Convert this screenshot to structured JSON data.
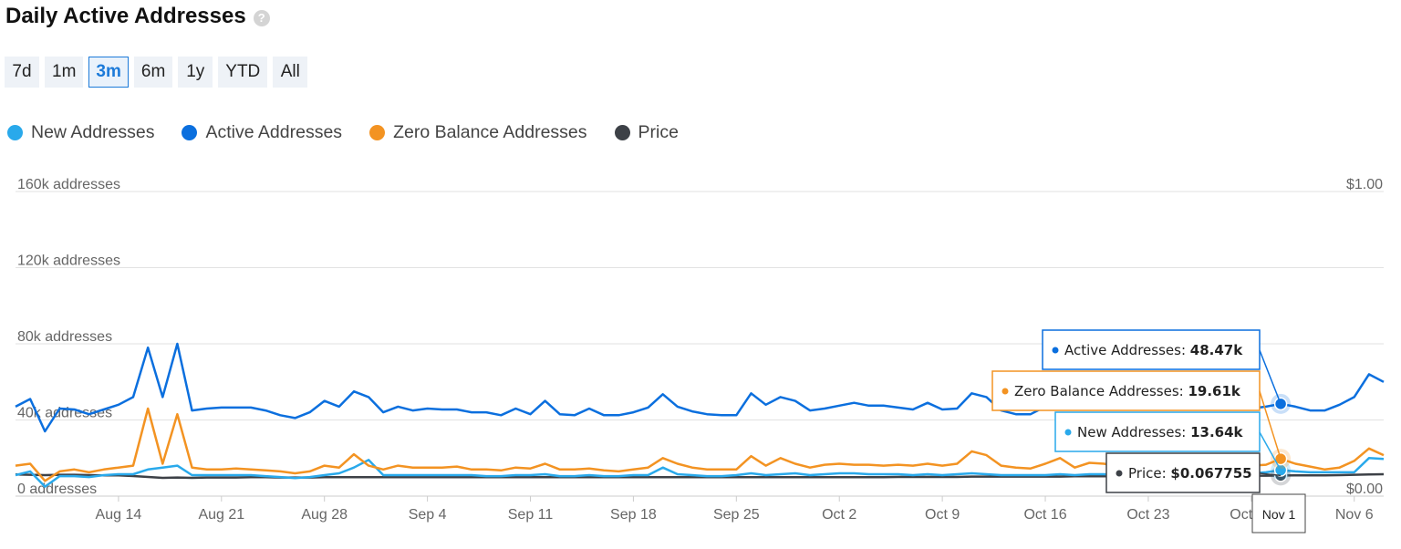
{
  "header": {
    "title": "Daily Active Addresses",
    "help_icon": "?"
  },
  "range_buttons": [
    {
      "label": "7d",
      "active": false
    },
    {
      "label": "1m",
      "active": false
    },
    {
      "label": "3m",
      "active": true
    },
    {
      "label": "6m",
      "active": false
    },
    {
      "label": "1y",
      "active": false
    },
    {
      "label": "YTD",
      "active": false
    },
    {
      "label": "All",
      "active": false
    }
  ],
  "legend": [
    {
      "label": "New Addresses",
      "color": "#29a9eb"
    },
    {
      "label": "Active Addresses",
      "color": "#0b6fde"
    },
    {
      "label": "Zero Balance Addresses",
      "color": "#f39322"
    },
    {
      "label": "Price",
      "color": "#3d4147"
    }
  ],
  "tooltip": {
    "active_label": "Active Addresses: ",
    "active_value": "48.47k",
    "zero_label": "Zero Balance Addresses: ",
    "zero_value": "19.61k",
    "new_label": "New Addresses: ",
    "new_value": "13.64k",
    "price_label": "Price: ",
    "price_value": "$0.067755",
    "date": "Nov 1"
  },
  "chart_data": {
    "type": "line",
    "title": "Daily Active Addresses",
    "left_axis": {
      "ticks": [
        "0 addresses",
        "40k addresses",
        "80k addresses",
        "120k addresses",
        "160k addresses"
      ],
      "range": [
        0,
        160000
      ]
    },
    "right_axis": {
      "ticks": [
        "$0.00",
        "$1.00"
      ],
      "range": [
        0,
        1
      ]
    },
    "x_ticks": [
      "Aug 14",
      "Aug 21",
      "Aug 28",
      "Sep 4",
      "Sep 11",
      "Sep 18",
      "Sep 25",
      "Oct 2",
      "Oct 9",
      "Oct 16",
      "Oct 23",
      "Oct 30",
      "Nov 6"
    ],
    "x_tick_index": [
      7,
      14,
      21,
      28,
      35,
      42,
      49,
      56,
      63,
      70,
      77,
      84,
      91
    ],
    "highlight_index": 86,
    "grid": true,
    "legend_position": "top-left",
    "series": [
      {
        "name": "Active Addresses",
        "color": "#0b6fde",
        "values": [
          47000,
          51000,
          34000,
          46000,
          45500,
          43000,
          45500,
          48000,
          52000,
          78000,
          52000,
          80000,
          45000,
          46000,
          46500,
          46500,
          46500,
          45000,
          42500,
          41000,
          44000,
          50000,
          47000,
          55000,
          52000,
          44000,
          47000,
          45000,
          46000,
          45500,
          45500,
          44000,
          44000,
          42500,
          46000,
          43000,
          50000,
          43000,
          42500,
          46000,
          42500,
          42500,
          44000,
          46500,
          53500,
          47000,
          44500,
          43000,
          42500,
          42500,
          54000,
          48000,
          52000,
          50000,
          45000,
          46000,
          47500,
          49000,
          47500,
          47500,
          46500,
          45500,
          49000,
          45500,
          46000,
          54000,
          52000,
          45000,
          43000,
          43000,
          47000,
          51000,
          46000,
          48000,
          49000,
          46500,
          50000,
          49000,
          52000,
          48000,
          46000,
          45500,
          46000,
          46500,
          46000,
          47000,
          48470,
          47000,
          45000,
          45000,
          48000,
          52000,
          64000,
          60000
        ]
      },
      {
        "name": "Zero Balance Addresses",
        "color": "#f39322",
        "values": [
          16000,
          17000,
          8000,
          13000,
          14000,
          12500,
          14000,
          15000,
          16000,
          46000,
          17000,
          43000,
          15000,
          14000,
          14000,
          14500,
          14000,
          13500,
          13000,
          12000,
          13000,
          16000,
          15000,
          22000,
          16000,
          14000,
          16000,
          15000,
          15000,
          15000,
          15500,
          14000,
          14000,
          13500,
          15000,
          14500,
          17000,
          14000,
          14000,
          14500,
          13500,
          13000,
          14000,
          15000,
          20000,
          17000,
          15000,
          14000,
          14000,
          14000,
          21000,
          16000,
          20000,
          17000,
          15000,
          16500,
          17000,
          16500,
          16500,
          16000,
          16500,
          16000,
          17000,
          16000,
          17000,
          23500,
          21500,
          16000,
          15000,
          14500,
          17000,
          20000,
          15000,
          17500,
          17000,
          15500,
          18000,
          18000,
          20000,
          17000,
          15500,
          15500,
          15500,
          16000,
          16000,
          16500,
          19610,
          17000,
          15500,
          14000,
          15000,
          18500,
          25000,
          21500
        ]
      },
      {
        "name": "New Addresses",
        "color": "#29a9eb",
        "values": [
          11000,
          13000,
          5000,
          10500,
          10500,
          10000,
          11000,
          11500,
          11500,
          14000,
          15000,
          16000,
          11000,
          11000,
          11000,
          11000,
          11000,
          10500,
          10000,
          9500,
          10000,
          11000,
          12000,
          15000,
          19000,
          11000,
          11000,
          11000,
          11000,
          11000,
          11000,
          11000,
          10500,
          10500,
          11000,
          11000,
          11500,
          10500,
          10500,
          11000,
          10500,
          10500,
          11000,
          11000,
          15000,
          11500,
          11000,
          10500,
          10500,
          11000,
          12000,
          11000,
          11500,
          12000,
          11000,
          11500,
          12000,
          12000,
          11500,
          11500,
          11500,
          11000,
          11500,
          11000,
          11500,
          12000,
          11500,
          11000,
          11000,
          11000,
          11000,
          11500,
          11000,
          11500,
          11500,
          11000,
          12000,
          12000,
          12500,
          12000,
          11500,
          11500,
          11500,
          11500,
          12000,
          12500,
          13640,
          13000,
          12500,
          12500,
          12500,
          12500,
          20000,
          19500
        ]
      },
      {
        "name": "Price",
        "color": "#3d4147",
        "axis": "right",
        "values": [
          0.071,
          0.07,
          0.069,
          0.07,
          0.07,
          0.069,
          0.068,
          0.068,
          0.066,
          0.063,
          0.06,
          0.061,
          0.06,
          0.061,
          0.061,
          0.061,
          0.062,
          0.062,
          0.061,
          0.061,
          0.061,
          0.062,
          0.062,
          0.062,
          0.062,
          0.062,
          0.062,
          0.062,
          0.062,
          0.062,
          0.062,
          0.062,
          0.062,
          0.062,
          0.062,
          0.062,
          0.062,
          0.062,
          0.062,
          0.062,
          0.062,
          0.062,
          0.062,
          0.062,
          0.062,
          0.062,
          0.062,
          0.062,
          0.062,
          0.062,
          0.062,
          0.062,
          0.062,
          0.062,
          0.062,
          0.062,
          0.062,
          0.062,
          0.062,
          0.062,
          0.063,
          0.063,
          0.063,
          0.063,
          0.063,
          0.064,
          0.064,
          0.064,
          0.064,
          0.064,
          0.064,
          0.064,
          0.065,
          0.065,
          0.065,
          0.065,
          0.065,
          0.066,
          0.066,
          0.066,
          0.066,
          0.066,
          0.067,
          0.067,
          0.067,
          0.067,
          0.067755,
          0.068,
          0.068,
          0.068,
          0.069,
          0.07,
          0.071,
          0.072
        ]
      }
    ]
  }
}
